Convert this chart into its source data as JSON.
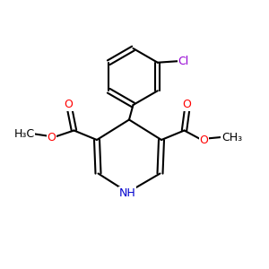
{
  "background_color": "#ffffff",
  "bond_color": "#000000",
  "atom_colors": {
    "O": "#ff0000",
    "N": "#0000cd",
    "Cl": "#9400d3",
    "C": "#000000"
  },
  "figsize": [
    3.0,
    3.0
  ],
  "dpi": 100,
  "xlim": [
    0,
    10
  ],
  "ylim": [
    0,
    10
  ],
  "lw": 1.5,
  "fs": 8.5
}
